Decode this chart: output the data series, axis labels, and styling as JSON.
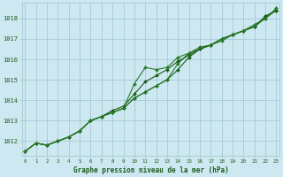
{
  "x": [
    0,
    1,
    2,
    3,
    4,
    5,
    6,
    7,
    8,
    9,
    10,
    11,
    12,
    13,
    14,
    15,
    16,
    17,
    18,
    19,
    20,
    21,
    22,
    23
  ],
  "line_spiky": [
    1011.5,
    1011.9,
    1011.8,
    1012.0,
    1012.2,
    1012.5,
    1013.0,
    1013.2,
    1013.4,
    1013.6,
    1014.8,
    1015.6,
    1015.5,
    1015.6,
    1016.1,
    1016.3,
    1016.6,
    1016.7,
    1017.0,
    1017.2,
    1017.4,
    1017.7,
    1018.0,
    1018.5
  ],
  "line_smooth1": [
    1011.5,
    1011.9,
    1011.8,
    1012.0,
    1012.2,
    1012.5,
    1013.0,
    1013.2,
    1013.4,
    1013.6,
    1014.1,
    1014.4,
    1014.7,
    1015.0,
    1015.5,
    1016.1,
    1016.5,
    1016.7,
    1017.0,
    1017.2,
    1017.4,
    1017.6,
    1018.1,
    1018.4
  ],
  "line_smooth2": [
    1011.5,
    1011.9,
    1011.8,
    1012.0,
    1012.2,
    1012.5,
    1013.0,
    1013.2,
    1013.5,
    1013.7,
    1014.3,
    1014.9,
    1015.2,
    1015.5,
    1015.9,
    1016.2,
    1016.5,
    1016.7,
    1017.0,
    1017.2,
    1017.4,
    1017.6,
    1018.1,
    1018.4
  ],
  "line_smooth3": [
    1011.5,
    1011.9,
    1011.8,
    1012.0,
    1012.2,
    1012.5,
    1013.0,
    1013.2,
    1013.4,
    1013.6,
    1014.1,
    1014.4,
    1014.7,
    1015.0,
    1015.8,
    1016.3,
    1016.5,
    1016.7,
    1016.9,
    1017.2,
    1017.4,
    1017.6,
    1018.0,
    1018.4
  ],
  "line_color_dark": "#1a5c1a",
  "line_color_mid": "#2a7a2a",
  "bg_color": "#cde8f0",
  "grid_color": "#9fc4d0",
  "text_color": "#1a5c1a",
  "xlabel": "Graphe pression niveau de la mer (hPa)",
  "ylim_min": 1011.3,
  "ylim_max": 1018.75,
  "yticks": [
    1012,
    1013,
    1014,
    1015,
    1016,
    1017,
    1018
  ],
  "xticks": [
    0,
    1,
    2,
    3,
    4,
    5,
    6,
    7,
    8,
    9,
    10,
    11,
    12,
    13,
    14,
    15,
    16,
    17,
    18,
    19,
    20,
    21,
    22,
    23
  ],
  "markersize": 2.0,
  "linewidth": 0.8
}
